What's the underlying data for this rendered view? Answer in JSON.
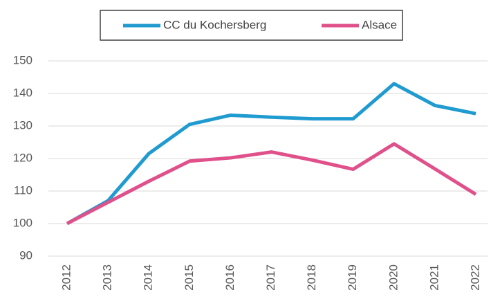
{
  "chart_data": {
    "type": "line",
    "x": [
      2012,
      2013,
      2014,
      2015,
      2016,
      2017,
      2018,
      2019,
      2020,
      2021,
      2022
    ],
    "series": [
      {
        "name": "CC du Kochersberg",
        "color": "#1f9bd0",
        "values": [
          100,
          107,
          121.5,
          130.5,
          133.3,
          132.7,
          132.2,
          132.2,
          143,
          136.3,
          133.8
        ]
      },
      {
        "name": "Alsace",
        "color": "#e0508a",
        "values": [
          100,
          106.5,
          113,
          119.2,
          120.2,
          122,
          119.5,
          116.7,
          124.5,
          116.8,
          109
        ]
      }
    ],
    "ylim": [
      90,
      150
    ],
    "yticks": [
      90,
      100,
      110,
      120,
      130,
      140,
      150
    ],
    "grid": true,
    "legend": "top"
  }
}
